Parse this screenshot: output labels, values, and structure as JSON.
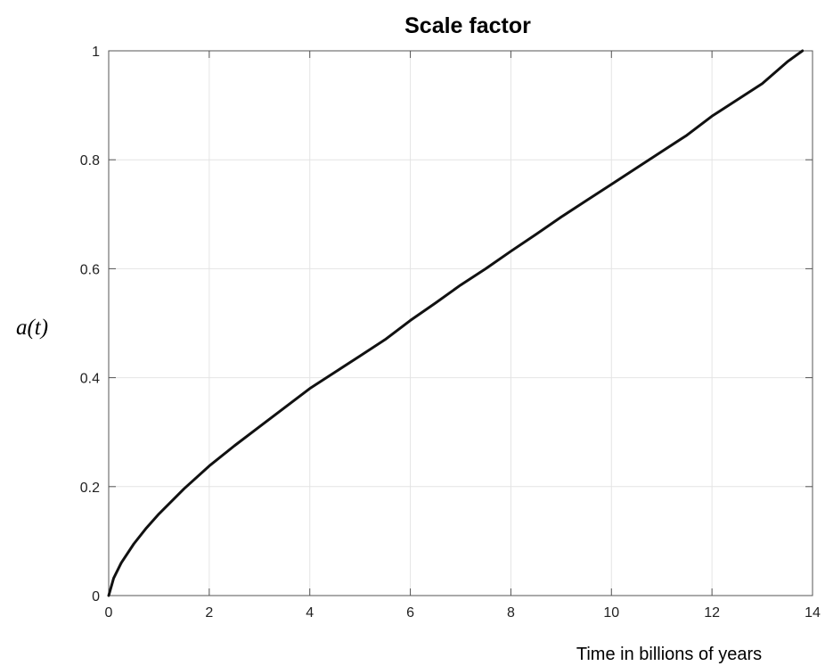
{
  "chart_data": {
    "type": "line",
    "title": "Scale factor",
    "xlabel": "Time in billions of years",
    "ylabel": "a(t)",
    "xlim": [
      0,
      14
    ],
    "ylim": [
      0,
      1
    ],
    "xticks": [
      0,
      2,
      4,
      6,
      8,
      10,
      12,
      14
    ],
    "yticks": [
      0,
      0.2,
      0.4,
      0.6,
      0.8,
      1
    ],
    "grid": true,
    "series": [
      {
        "color": "#111111",
        "x": [
          0,
          0.1,
          0.25,
          0.5,
          0.75,
          1,
          1.5,
          2,
          2.5,
          3,
          3.5,
          4,
          4.5,
          5,
          5.5,
          6,
          6.5,
          7,
          7.5,
          8,
          8.5,
          9,
          9.5,
          10,
          10.5,
          11,
          11.5,
          12,
          12.5,
          13,
          13.5,
          13.8
        ],
        "y": [
          0,
          0.032,
          0.06,
          0.095,
          0.124,
          0.15,
          0.196,
          0.238,
          0.275,
          0.31,
          0.345,
          0.38,
          0.41,
          0.44,
          0.47,
          0.505,
          0.537,
          0.57,
          0.6,
          0.632,
          0.663,
          0.695,
          0.725,
          0.755,
          0.785,
          0.815,
          0.845,
          0.88,
          0.91,
          0.94,
          0.98,
          1.0
        ]
      }
    ]
  }
}
